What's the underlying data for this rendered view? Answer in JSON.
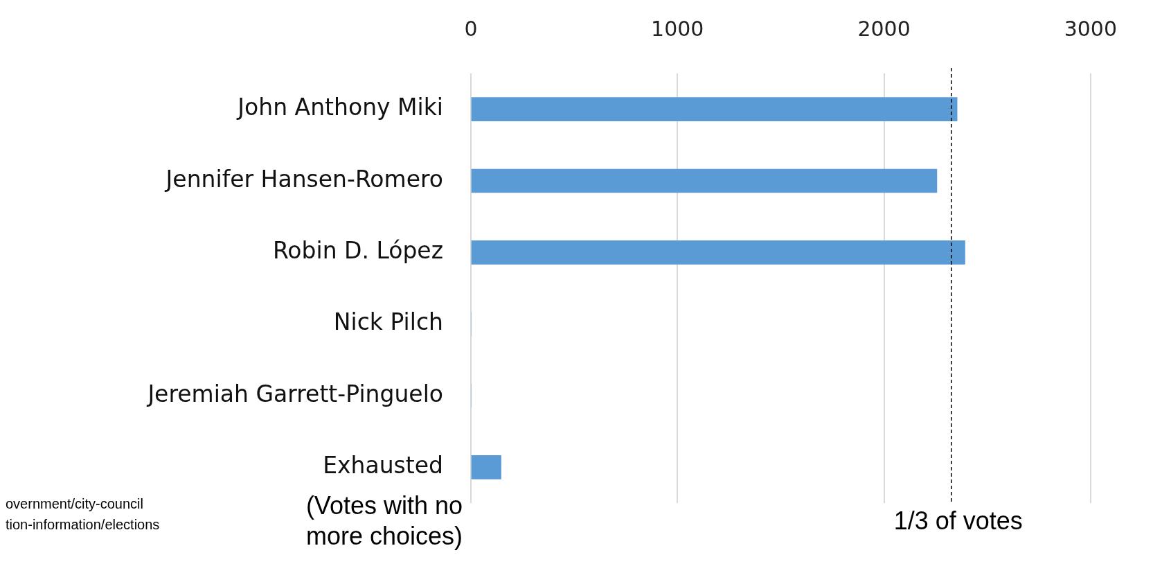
{
  "chart_data": {
    "type": "bar",
    "orientation": "horizontal",
    "categories": [
      "John Anthony Miki",
      "Jennifer Hansen-Romero",
      "Robin D. López",
      "Nick Pilch",
      "Jeremiah Garrett-Pinguelo",
      "Exhausted"
    ],
    "values": [
      2354,
      2256,
      2392,
      0,
      0,
      146
    ],
    "color": "#5b9bd5",
    "xlim": [
      0,
      3000
    ],
    "xticks": [
      0,
      1000,
      2000,
      3000
    ],
    "grid": "x",
    "ref_lines": [
      {
        "axis": "x",
        "value": 2326,
        "label": "1/3 of votes",
        "color": "#000000",
        "line_style": "dashed"
      }
    ],
    "annotations": [
      "(Votes with no more choices)",
      "overnment/city-council",
      "tion-information/elections"
    ]
  }
}
